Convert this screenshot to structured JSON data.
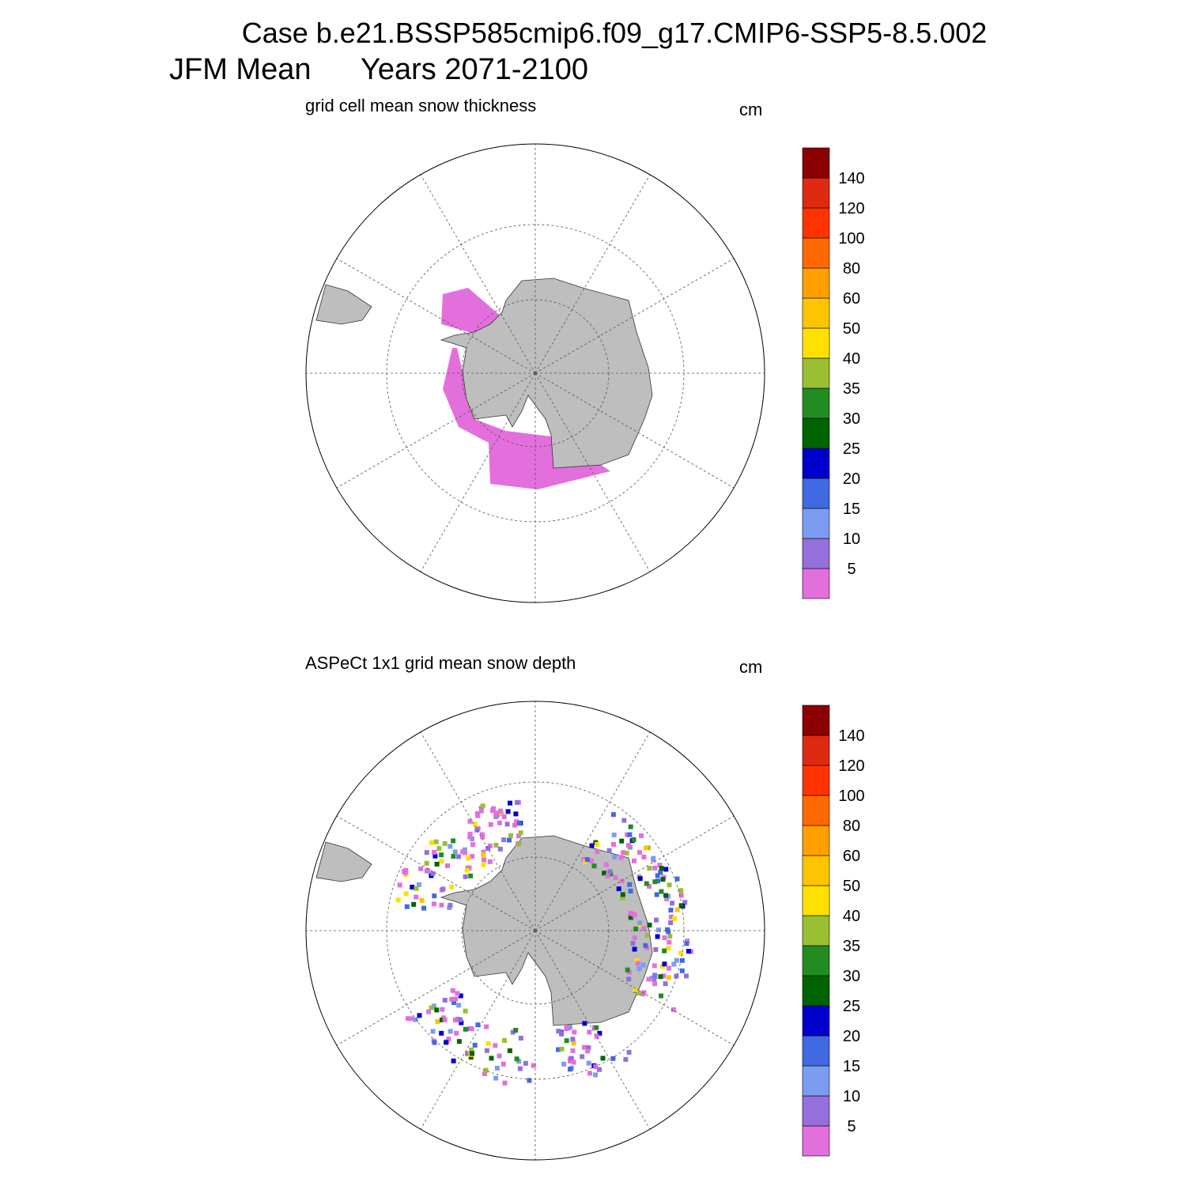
{
  "header": {
    "title": "Case b.e21.BSSP585cmip6.f09_g17.CMIP6-SSP5-8.5.002",
    "season": "JFM Mean",
    "years": "Years 2071-2100"
  },
  "panels": [
    {
      "title": "grid cell mean snow thickness",
      "units": "cm"
    },
    {
      "title": "ASPeCt 1x1 grid mean snow depth",
      "units": "cm"
    }
  ],
  "colorbar": {
    "levels": [
      5,
      10,
      15,
      20,
      25,
      30,
      35,
      40,
      50,
      60,
      80,
      100,
      120,
      140
    ],
    "colors": [
      "#e36fdd",
      "#9370db",
      "#7b9cf0",
      "#4169e1",
      "#0000cd",
      "#006400",
      "#228b22",
      "#9abf32",
      "#ffe000",
      "#ffc400",
      "#ffa000",
      "#ff6a00",
      "#ff3300",
      "#dd2a10",
      "#8b0000"
    ]
  }
}
